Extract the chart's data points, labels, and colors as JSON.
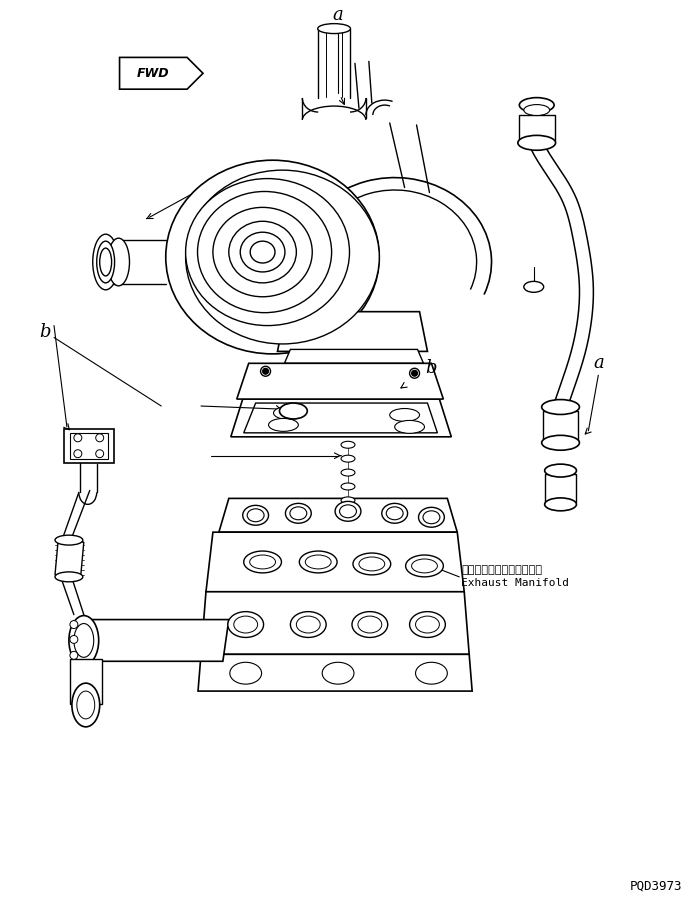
{
  "bg_color": "#ffffff",
  "line_color": "#000000",
  "fig_width": 6.97,
  "fig_height": 9.09,
  "dpi": 100,
  "label_a_top": "a",
  "label_a_right": "a",
  "label_b_left": "b",
  "label_b_mid": "b",
  "fwd_text": "FWD",
  "exhaust_jp": "エキゾーストマニホールド",
  "exhaust_en": "Exhaust Manifold",
  "part_number": "PQD3973"
}
